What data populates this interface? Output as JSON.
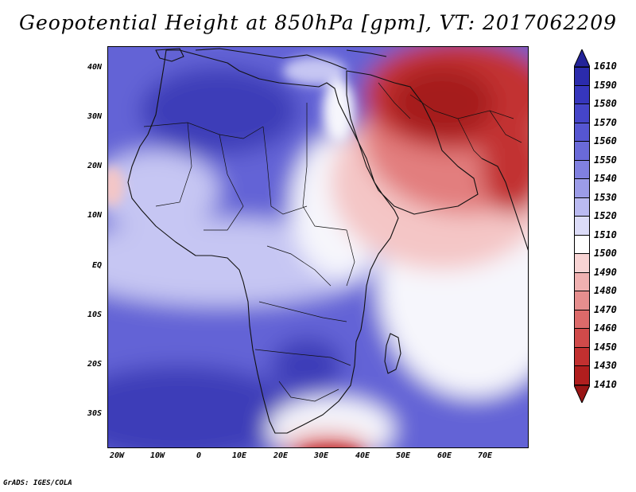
{
  "title": "Geopotential Height at 850hPa [gpm], VT: 2017062209",
  "credit": "GrADS: IGES/COLA",
  "axes": {
    "lat_labels": [
      "40N",
      "30N",
      "20N",
      "10N",
      "EQ",
      "10S",
      "20S",
      "30S"
    ],
    "lon_labels": [
      "20W",
      "10W",
      "0",
      "10E",
      "20E",
      "30E",
      "40E",
      "50E",
      "60E",
      "70E"
    ]
  },
  "colorbar": {
    "labels": [
      "1610",
      "1590",
      "1580",
      "1570",
      "1560",
      "1550",
      "1540",
      "1530",
      "1520",
      "1510",
      "1500",
      "1490",
      "1480",
      "1470",
      "1460",
      "1450",
      "1430",
      "1410"
    ],
    "colors": [
      "#232399",
      "#2b2bac",
      "#3636bd",
      "#4545c9",
      "#5656d2",
      "#6a6ad9",
      "#8080e0",
      "#9c9ce8",
      "#babaf1",
      "#dcdcf8",
      "#ffffff",
      "#f8d4d4",
      "#f0b1b1",
      "#e68e8e",
      "#dc6a6a",
      "#d04a4a",
      "#c23030",
      "#b01e1e",
      "#991515"
    ]
  },
  "map_colors": {
    "deep_blue": "#3d3db8",
    "mid_blue": "#6363d6",
    "light_blue": "#9898e8",
    "pale_blue": "#c6c6f3",
    "white": "#f6f6fc",
    "pale_red": "#f4c6c6",
    "mid_red": "#e27e7e",
    "deep_red": "#c23030",
    "darkest_red": "#a51a1a"
  }
}
